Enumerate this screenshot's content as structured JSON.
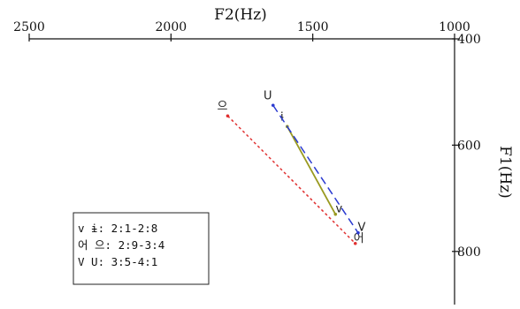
{
  "chart_data": {
    "type": "line",
    "title": "",
    "xlabel": "F2(Hz)",
    "ylabel": "F1(Hz)",
    "x_axis": {
      "ticks": [
        2500,
        2000,
        1500,
        1000
      ],
      "range": [
        2500,
        1000
      ],
      "reversed": true,
      "position": "top"
    },
    "y_axis": {
      "ticks": [
        400,
        600,
        800
      ],
      "range": [
        400,
        900
      ],
      "reversed": true,
      "position": "right"
    },
    "grid": false,
    "legend_position": "bottom-left",
    "series": [
      {
        "name": "v ɨ: 2:1-2:8",
        "color": "#9a9a20",
        "style": "solid",
        "points": [
          {
            "label": "ɨ",
            "x": 1590,
            "y": 565
          },
          {
            "label": "v",
            "x": 1420,
            "y": 730
          }
        ]
      },
      {
        "name": "어 으: 2:9-3:4",
        "color": "#e03030",
        "style": "dotted",
        "points": [
          {
            "label": "으",
            "x": 1800,
            "y": 545
          },
          {
            "label": "어",
            "x": 1350,
            "y": 785
          }
        ]
      },
      {
        "name": "V U: 3:5-4:1",
        "color": "#2a3ad0",
        "style": "dashed",
        "points": [
          {
            "label": "U",
            "x": 1640,
            "y": 525
          },
          {
            "label": "V",
            "x": 1340,
            "y": 765
          }
        ]
      }
    ]
  }
}
